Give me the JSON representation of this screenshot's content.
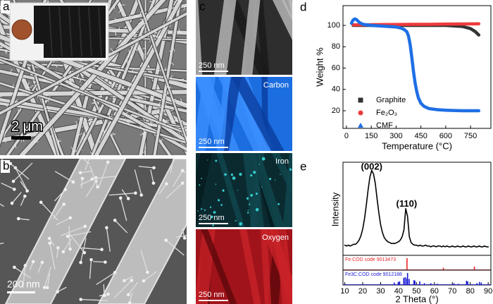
{
  "figure_panels": [
    {
      "label": "a",
      "scale_bar": "2 μm"
    },
    {
      "label": "b",
      "scale_bar": "200 nm"
    },
    {
      "label": "c",
      "maps": [
        {
          "scale_bar": "250 nm"
        },
        {
          "element": "Carbon",
          "scale_bar": "250 nm"
        },
        {
          "element": "Iron",
          "scale_bar": "250 nm"
        },
        {
          "element": "Oxygen",
          "scale_bar": "250 nm"
        }
      ]
    },
    {
      "label": "d"
    },
    {
      "label": "e"
    }
  ],
  "chart_data": [
    {
      "type": "line",
      "x_label": "Temperature (°C)",
      "y_label": "Weight %",
      "xlim": [
        -21,
        873
      ],
      "ylim": [
        3.5,
        118.5
      ],
      "xticks": [
        0,
        150,
        300,
        450,
        600,
        750
      ],
      "yticks": [
        20,
        40,
        60,
        80,
        100
      ],
      "legend": "lower-left",
      "series": [
        {
          "name": "Graphite",
          "color": "#333333",
          "marker": "square",
          "x": [
            40,
            100,
            200,
            300,
            400,
            500,
            600,
            700,
            750,
            780,
            800
          ],
          "values": [
            100,
            100,
            100,
            100,
            100,
            100,
            100,
            99,
            97,
            94,
            91
          ]
        },
        {
          "name": "Fe₂O₃",
          "color": "#ee3b3b",
          "marker": "circle",
          "x": [
            40,
            100,
            200,
            300,
            400,
            500,
            600,
            700,
            800
          ],
          "values": [
            100.5,
            100.5,
            100.7,
            100.8,
            101,
            101,
            101.2,
            101.3,
            101.5
          ]
        },
        {
          "name": "CMF",
          "color": "#1f6fe5",
          "marker": "triangle",
          "x": [
            30,
            40,
            50,
            60,
            70,
            80,
            100,
            150,
            200,
            250,
            300,
            330,
            350,
            365,
            375,
            385,
            395,
            405,
            415,
            425,
            435,
            450,
            470,
            500,
            550,
            600,
            700,
            800
          ],
          "values": [
            102,
            105,
            106,
            105.5,
            104,
            102.5,
            101,
            100,
            99.5,
            99,
            98.5,
            97.5,
            96,
            94,
            90,
            82,
            70,
            57,
            46,
            38,
            32,
            27,
            24,
            22,
            21,
            20.5,
            20,
            20
          ]
        }
      ]
    },
    {
      "type": "line",
      "x_label": "2 Theta (°)",
      "y_label": "Intensity",
      "xlim": [
        9,
        91.5
      ],
      "ylim": [
        0,
        108
      ],
      "xticks": [
        10,
        20,
        30,
        40,
        50,
        60,
        70,
        80,
        90
      ],
      "color": "#000000",
      "x": [
        10,
        11,
        12,
        13,
        14,
        15,
        16,
        17,
        18,
        19,
        20,
        21,
        22,
        23,
        24,
        25,
        26,
        27,
        28,
        29,
        30,
        31,
        32,
        33,
        34,
        35,
        36,
        37,
        38,
        39,
        40,
        41,
        42,
        43,
        44,
        45,
        46,
        47,
        48,
        49,
        50,
        51,
        52,
        53,
        54,
        55,
        56,
        57,
        58,
        59,
        60,
        61,
        62,
        63,
        64,
        65,
        66,
        67,
        68,
        69,
        70,
        71,
        72,
        73,
        74,
        75,
        76,
        77,
        78,
        79,
        80,
        81,
        82,
        83,
        84,
        85,
        86,
        87,
        88,
        89,
        90
      ],
      "values": [
        12,
        11,
        12,
        11,
        12,
        13,
        13,
        15,
        18,
        23,
        31,
        43,
        59,
        77,
        92,
        100,
        96,
        85,
        67,
        50,
        36,
        27,
        21,
        18,
        16,
        15,
        14,
        14,
        14,
        15,
        16,
        18,
        22,
        30,
        55,
        46,
        22,
        15,
        13,
        12,
        12,
        11,
        12,
        11,
        11,
        12,
        11,
        11,
        10,
        11,
        11,
        10,
        11,
        11,
        10,
        11,
        10,
        11,
        10,
        10,
        11,
        10,
        10,
        11,
        10,
        10,
        11,
        10,
        10,
        11,
        10,
        10,
        11,
        10,
        10,
        11,
        10,
        10,
        11,
        10,
        10
      ],
      "annotations": [
        {
          "text": "(002)",
          "x": 25,
          "y": 104
        },
        {
          "text": "(110)",
          "x": 44.5,
          "y": 60
        }
      ],
      "reference_patterns": [
        {
          "name": "Fe:COD code 9013473",
          "color": "#e8262a",
          "x": [
            44.7,
            65,
            82.3
          ],
          "values": [
            100,
            20,
            30
          ]
        },
        {
          "name": "Fe3C:COD code 9012188",
          "color": "#1a1ad6",
          "x": [
            37.6,
            39.8,
            40.6,
            42.9,
            43.7,
            44.6,
            45.0,
            45.9,
            48.6,
            49.1,
            51.8,
            54.4,
            58.0,
            61.6,
            70.9,
            73.4,
            77.9,
            78.6,
            83.7,
            85.1,
            86.1
          ],
          "values": [
            20,
            25,
            30,
            60,
            65,
            55,
            100,
            50,
            40,
            35,
            30,
            15,
            15,
            10,
            15,
            10,
            35,
            30,
            15,
            25,
            20
          ]
        }
      ]
    }
  ]
}
